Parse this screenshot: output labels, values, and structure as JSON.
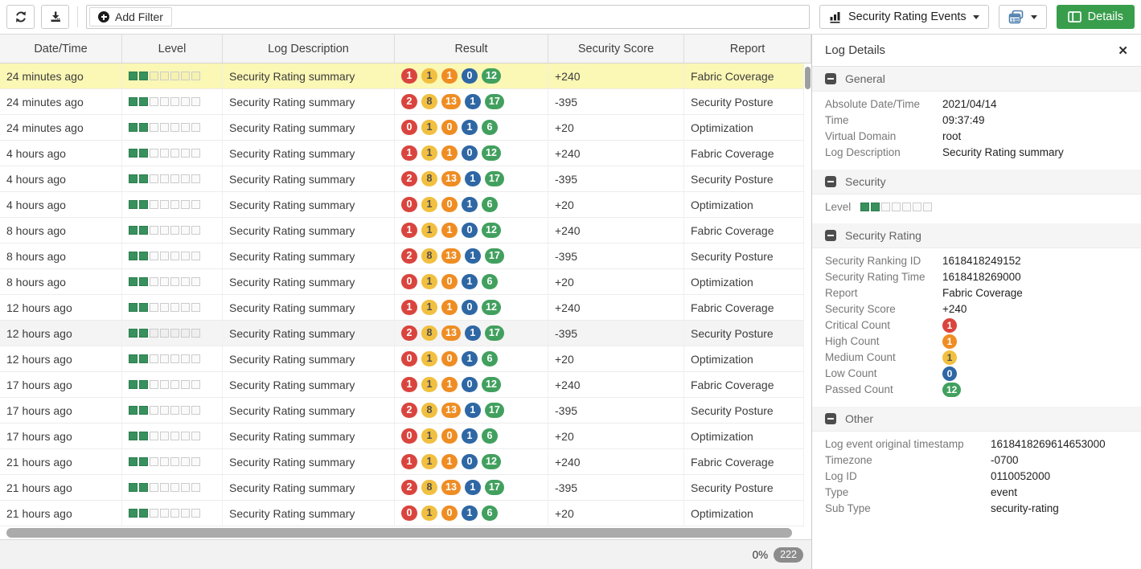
{
  "colors": {
    "accent-green": "#399e4c",
    "badge-red": "#d9453e",
    "badge-orange": "#ef8d23",
    "badge-yellow": "#f1c040",
    "badge-blue": "#2e67a4",
    "badge-green": "#42a05f",
    "level-green": "#37915c",
    "row-selected": "#fbf7b4",
    "icon-blue": "#4a7dad"
  },
  "toolbar": {
    "add_filter": "Add Filter",
    "view_selector": "Security Rating Events",
    "details_button": "Details"
  },
  "table": {
    "columns": [
      "Date/Time",
      "Level",
      "Log Description",
      "Result",
      "Security Score",
      "Report"
    ],
    "level_total": 7,
    "rows": [
      {
        "datetime": "24 minutes ago",
        "level": 2,
        "description": "Security Rating summary",
        "result": [
          {
            "value": "1",
            "color": "red"
          },
          {
            "value": "1",
            "color": "yellow"
          },
          {
            "value": "1",
            "color": "orange"
          },
          {
            "value": "0",
            "color": "blue"
          },
          {
            "value": "12",
            "color": "green"
          }
        ],
        "score": "+240",
        "report": "Fabric Coverage",
        "state": "selected"
      },
      {
        "datetime": "24 minutes ago",
        "level": 2,
        "description": "Security Rating summary",
        "result": [
          {
            "value": "2",
            "color": "red"
          },
          {
            "value": "8",
            "color": "yellow"
          },
          {
            "value": "13",
            "color": "orange"
          },
          {
            "value": "1",
            "color": "blue"
          },
          {
            "value": "17",
            "color": "green"
          }
        ],
        "score": "-395",
        "report": "Security Posture"
      },
      {
        "datetime": "24 minutes ago",
        "level": 2,
        "description": "Security Rating summary",
        "result": [
          {
            "value": "0",
            "color": "red"
          },
          {
            "value": "1",
            "color": "yellow"
          },
          {
            "value": "0",
            "color": "orange"
          },
          {
            "value": "1",
            "color": "blue"
          },
          {
            "value": "6",
            "color": "green"
          }
        ],
        "score": "+20",
        "report": "Optimization"
      },
      {
        "datetime": "4 hours ago",
        "level": 2,
        "description": "Security Rating summary",
        "result": [
          {
            "value": "1",
            "color": "red"
          },
          {
            "value": "1",
            "color": "yellow"
          },
          {
            "value": "1",
            "color": "orange"
          },
          {
            "value": "0",
            "color": "blue"
          },
          {
            "value": "12",
            "color": "green"
          }
        ],
        "score": "+240",
        "report": "Fabric Coverage"
      },
      {
        "datetime": "4 hours ago",
        "level": 2,
        "description": "Security Rating summary",
        "result": [
          {
            "value": "2",
            "color": "red"
          },
          {
            "value": "8",
            "color": "yellow"
          },
          {
            "value": "13",
            "color": "orange"
          },
          {
            "value": "1",
            "color": "blue"
          },
          {
            "value": "17",
            "color": "green"
          }
        ],
        "score": "-395",
        "report": "Security Posture"
      },
      {
        "datetime": "4 hours ago",
        "level": 2,
        "description": "Security Rating summary",
        "result": [
          {
            "value": "0",
            "color": "red"
          },
          {
            "value": "1",
            "color": "yellow"
          },
          {
            "value": "0",
            "color": "orange"
          },
          {
            "value": "1",
            "color": "blue"
          },
          {
            "value": "6",
            "color": "green"
          }
        ],
        "score": "+20",
        "report": "Optimization"
      },
      {
        "datetime": "8 hours ago",
        "level": 2,
        "description": "Security Rating summary",
        "result": [
          {
            "value": "1",
            "color": "red"
          },
          {
            "value": "1",
            "color": "yellow"
          },
          {
            "value": "1",
            "color": "orange"
          },
          {
            "value": "0",
            "color": "blue"
          },
          {
            "value": "12",
            "color": "green"
          }
        ],
        "score": "+240",
        "report": "Fabric Coverage"
      },
      {
        "datetime": "8 hours ago",
        "level": 2,
        "description": "Security Rating summary",
        "result": [
          {
            "value": "2",
            "color": "red"
          },
          {
            "value": "8",
            "color": "yellow"
          },
          {
            "value": "13",
            "color": "orange"
          },
          {
            "value": "1",
            "color": "blue"
          },
          {
            "value": "17",
            "color": "green"
          }
        ],
        "score": "-395",
        "report": "Security Posture"
      },
      {
        "datetime": "8 hours ago",
        "level": 2,
        "description": "Security Rating summary",
        "result": [
          {
            "value": "0",
            "color": "red"
          },
          {
            "value": "1",
            "color": "yellow"
          },
          {
            "value": "0",
            "color": "orange"
          },
          {
            "value": "1",
            "color": "blue"
          },
          {
            "value": "6",
            "color": "green"
          }
        ],
        "score": "+20",
        "report": "Optimization"
      },
      {
        "datetime": "12 hours ago",
        "level": 2,
        "description": "Security Rating summary",
        "result": [
          {
            "value": "1",
            "color": "red"
          },
          {
            "value": "1",
            "color": "yellow"
          },
          {
            "value": "1",
            "color": "orange"
          },
          {
            "value": "0",
            "color": "blue"
          },
          {
            "value": "12",
            "color": "green"
          }
        ],
        "score": "+240",
        "report": "Fabric Coverage"
      },
      {
        "datetime": "12 hours ago",
        "level": 2,
        "description": "Security Rating summary",
        "result": [
          {
            "value": "2",
            "color": "red"
          },
          {
            "value": "8",
            "color": "yellow"
          },
          {
            "value": "13",
            "color": "orange"
          },
          {
            "value": "1",
            "color": "blue"
          },
          {
            "value": "17",
            "color": "green"
          }
        ],
        "score": "-395",
        "report": "Security Posture",
        "state": "hover"
      },
      {
        "datetime": "12 hours ago",
        "level": 2,
        "description": "Security Rating summary",
        "result": [
          {
            "value": "0",
            "color": "red"
          },
          {
            "value": "1",
            "color": "yellow"
          },
          {
            "value": "0",
            "color": "orange"
          },
          {
            "value": "1",
            "color": "blue"
          },
          {
            "value": "6",
            "color": "green"
          }
        ],
        "score": "+20",
        "report": "Optimization"
      },
      {
        "datetime": "17 hours ago",
        "level": 2,
        "description": "Security Rating summary",
        "result": [
          {
            "value": "1",
            "color": "red"
          },
          {
            "value": "1",
            "color": "yellow"
          },
          {
            "value": "1",
            "color": "orange"
          },
          {
            "value": "0",
            "color": "blue"
          },
          {
            "value": "12",
            "color": "green"
          }
        ],
        "score": "+240",
        "report": "Fabric Coverage"
      },
      {
        "datetime": "17 hours ago",
        "level": 2,
        "description": "Security Rating summary",
        "result": [
          {
            "value": "2",
            "color": "red"
          },
          {
            "value": "8",
            "color": "yellow"
          },
          {
            "value": "13",
            "color": "orange"
          },
          {
            "value": "1",
            "color": "blue"
          },
          {
            "value": "17",
            "color": "green"
          }
        ],
        "score": "-395",
        "report": "Security Posture"
      },
      {
        "datetime": "17 hours ago",
        "level": 2,
        "description": "Security Rating summary",
        "result": [
          {
            "value": "0",
            "color": "red"
          },
          {
            "value": "1",
            "color": "yellow"
          },
          {
            "value": "0",
            "color": "orange"
          },
          {
            "value": "1",
            "color": "blue"
          },
          {
            "value": "6",
            "color": "green"
          }
        ],
        "score": "+20",
        "report": "Optimization"
      },
      {
        "datetime": "21 hours ago",
        "level": 2,
        "description": "Security Rating summary",
        "result": [
          {
            "value": "1",
            "color": "red"
          },
          {
            "value": "1",
            "color": "yellow"
          },
          {
            "value": "1",
            "color": "orange"
          },
          {
            "value": "0",
            "color": "blue"
          },
          {
            "value": "12",
            "color": "green"
          }
        ],
        "score": "+240",
        "report": "Fabric Coverage"
      },
      {
        "datetime": "21 hours ago",
        "level": 2,
        "description": "Security Rating summary",
        "result": [
          {
            "value": "2",
            "color": "red"
          },
          {
            "value": "8",
            "color": "yellow"
          },
          {
            "value": "13",
            "color": "orange"
          },
          {
            "value": "1",
            "color": "blue"
          },
          {
            "value": "17",
            "color": "green"
          }
        ],
        "score": "-395",
        "report": "Security Posture"
      },
      {
        "datetime": "21 hours ago",
        "level": 2,
        "description": "Security Rating summary",
        "result": [
          {
            "value": "0",
            "color": "red"
          },
          {
            "value": "1",
            "color": "yellow"
          },
          {
            "value": "0",
            "color": "orange"
          },
          {
            "value": "1",
            "color": "blue"
          },
          {
            "value": "6",
            "color": "green"
          }
        ],
        "score": "+20",
        "report": "Optimization"
      }
    ]
  },
  "footer": {
    "percent": "0%",
    "count": "222"
  },
  "details": {
    "title": "Log Details",
    "close_icon": "✕",
    "general": {
      "title": "General",
      "rows": [
        {
          "label": "Absolute Date/Time",
          "value": "2021/04/14"
        },
        {
          "label": "Time",
          "value": "09:37:49"
        },
        {
          "label": "Virtual Domain",
          "value": "root"
        },
        {
          "label": "Log Description",
          "value": "Security Rating summary"
        }
      ]
    },
    "security": {
      "title": "Security",
      "level_label": "Level",
      "level": 2
    },
    "security_rating": {
      "title": "Security Rating",
      "rows": [
        {
          "label": "Security Ranking ID",
          "value": "1618418249152"
        },
        {
          "label": "Security Rating Time",
          "value": "1618418269000"
        },
        {
          "label": "Report",
          "value": "Fabric Coverage"
        },
        {
          "label": "Security Score",
          "value": "+240"
        }
      ],
      "badge_rows": [
        {
          "label": "Critical Count",
          "value": "1",
          "color": "red"
        },
        {
          "label": "High Count",
          "value": "1",
          "color": "orange"
        },
        {
          "label": "Medium Count",
          "value": "1",
          "color": "yellow"
        },
        {
          "label": "Low Count",
          "value": "0",
          "color": "blue"
        },
        {
          "label": "Passed Count",
          "value": "12",
          "color": "green"
        }
      ]
    },
    "other": {
      "title": "Other",
      "rows": [
        {
          "label": "Log event original timestamp",
          "value": "1618418269614653000"
        },
        {
          "label": "Timezone",
          "value": "-0700"
        },
        {
          "label": "Log ID",
          "value": "0110052000"
        },
        {
          "label": "Type",
          "value": "event"
        },
        {
          "label": "Sub Type",
          "value": "security-rating"
        }
      ]
    }
  }
}
